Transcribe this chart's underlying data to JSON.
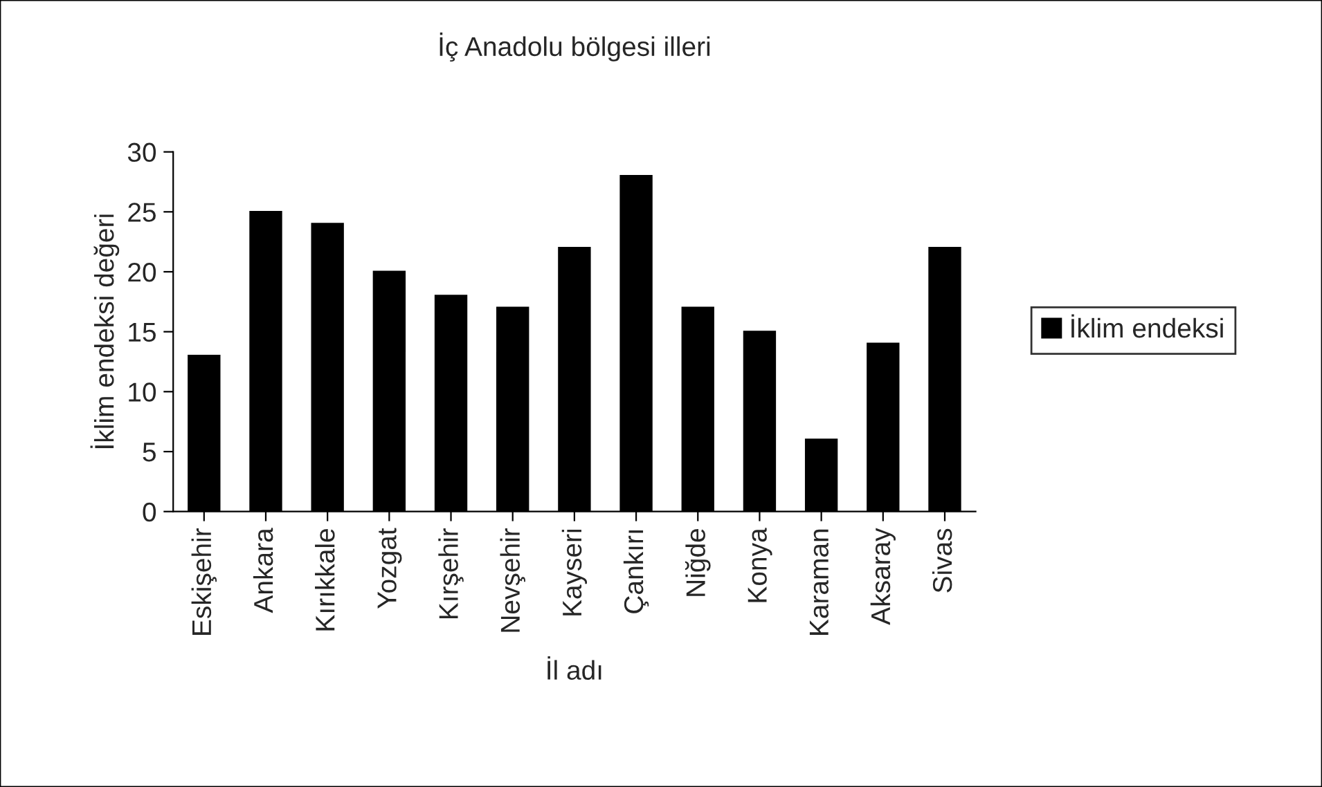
{
  "chart_data": {
    "type": "bar",
    "title": "İç Anadolu bölgesi illeri",
    "xlabel": "İl adı",
    "ylabel": "İklim endeksi değeri",
    "categories": [
      "Eskişehir",
      "Ankara",
      "Kırıkkale",
      "Yozgat",
      "Kırşehir",
      "Nevşehir",
      "Kayseri",
      "Çankırı",
      "Niğde",
      "Konya",
      "Karaman",
      "Aksaray",
      "Sivas"
    ],
    "series": [
      {
        "name": "İklim endeksi",
        "color": "#000000",
        "values": [
          13,
          25,
          24,
          20,
          18,
          17,
          22,
          28,
          17,
          15,
          6,
          14,
          22
        ]
      }
    ],
    "ylim": [
      0,
      30
    ],
    "yticks": [
      0,
      5,
      10,
      15,
      20,
      25,
      30
    ],
    "grid": false,
    "legend": "right"
  }
}
